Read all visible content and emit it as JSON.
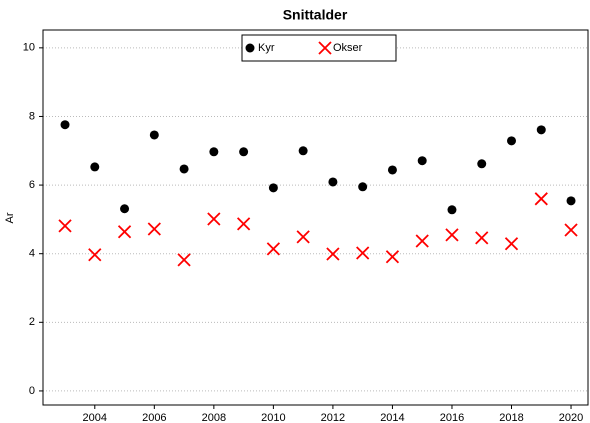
{
  "chart_data": {
    "type": "scatter",
    "title": "Snittalder",
    "y_label": "Ar",
    "x": [
      2003,
      2004,
      2005,
      2006,
      2007,
      2008,
      2009,
      2010,
      2011,
      2012,
      2013,
      2014,
      2015,
      2016,
      2017,
      2018,
      2019,
      2020
    ],
    "series": [
      {
        "name": "Kyr",
        "color": "#000000",
        "marker": "circle",
        "values": [
          7.76,
          6.53,
          5.31,
          7.46,
          6.47,
          6.97,
          6.97,
          5.92,
          7.0,
          6.09,
          5.95,
          6.44,
          6.71,
          5.28,
          6.62,
          7.29,
          7.61,
          5.54
        ]
      },
      {
        "name": "Okser",
        "color": "#ff0000",
        "marker": "x",
        "values": [
          4.81,
          3.97,
          4.64,
          4.72,
          3.82,
          5.01,
          4.87,
          4.14,
          4.49,
          3.99,
          4.02,
          3.91,
          4.37,
          4.55,
          4.46,
          4.29,
          5.6,
          4.69
        ]
      }
    ],
    "xlim": [
      2002.26,
      2020.57
    ],
    "xticks": [
      2004,
      2006,
      2008,
      2010,
      2012,
      2014,
      2016,
      2018,
      2020
    ],
    "ylim": [
      -0.41,
      10.52
    ],
    "yticks": [
      0,
      2,
      4,
      6,
      8,
      10
    ],
    "grid": true,
    "legend": "top"
  }
}
